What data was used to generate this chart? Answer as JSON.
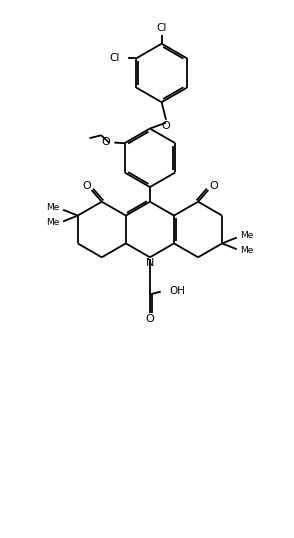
{
  "bg_color": "#ffffff",
  "line_color": "#000000",
  "lw": 1.3,
  "figsize": [
    2.94,
    5.38
  ],
  "dpi": 100,
  "xlim": [
    0,
    10
  ],
  "ylim": [
    0,
    18
  ]
}
